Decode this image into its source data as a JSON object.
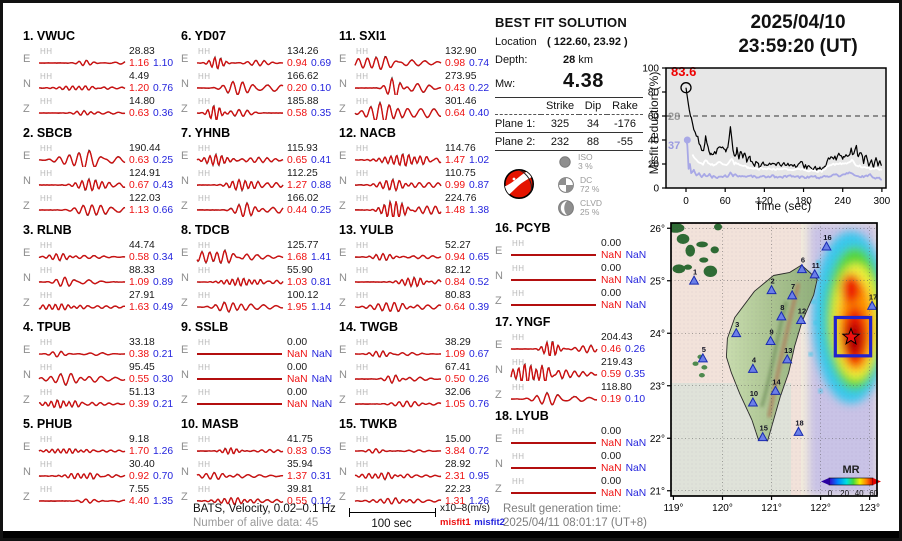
{
  "title": {
    "date": "2025/04/10",
    "time": "23:59:20  (UT)"
  },
  "best_fit": {
    "title": "BEST FIT SOLUTION",
    "location_label": "Location",
    "location_value": "( 122.60,  23.92 )",
    "depth_label": "Depth:",
    "depth_value": "28",
    "depth_unit": "km",
    "mw_label": "Mw:",
    "mw_value": "4.38",
    "table_headers": [
      "",
      "Strike",
      "Dip",
      "Rake"
    ],
    "planes": [
      {
        "label": "Plane 1:",
        "strike": "325",
        "dip": "34",
        "rake": "-176"
      },
      {
        "label": "Plane 2:",
        "strike": "232",
        "dip": "88",
        "rake": "-55"
      }
    ],
    "decomposition": [
      {
        "name": "ISO",
        "pct": "3 %"
      },
      {
        "name": "DC",
        "pct": "72 %"
      },
      {
        "name": "CLVD",
        "pct": "25 %"
      }
    ]
  },
  "stations": [
    {
      "num": "1.",
      "code": "VWUC",
      "traces": [
        {
          "ch": "HH",
          "comp": "E",
          "amp": "28.83",
          "m1": "1.16",
          "m2": "1.10"
        },
        {
          "ch": "HH",
          "comp": "N",
          "amp": "4.49",
          "m1": "1.20",
          "m2": "0.76"
        },
        {
          "ch": "HH",
          "comp": "Z",
          "amp": "14.80",
          "m1": "0.63",
          "m2": "0.36"
        }
      ]
    },
    {
      "num": "2.",
      "code": "SBCB",
      "traces": [
        {
          "ch": "HH",
          "comp": "E",
          "amp": "190.44",
          "m1": "0.63",
          "m2": "0.25"
        },
        {
          "ch": "HH",
          "comp": "N",
          "amp": "124.91",
          "m1": "0.67",
          "m2": "0.43"
        },
        {
          "ch": "HH",
          "comp": "Z",
          "amp": "122.03",
          "m1": "1.13",
          "m2": "0.66"
        }
      ]
    },
    {
      "num": "3.",
      "code": "RLNB",
      "traces": [
        {
          "ch": "HH",
          "comp": "E",
          "amp": "44.74",
          "m1": "0.58",
          "m2": "0.34"
        },
        {
          "ch": "HH",
          "comp": "N",
          "amp": "88.33",
          "m1": "1.09",
          "m2": "0.89"
        },
        {
          "ch": "HH",
          "comp": "Z",
          "amp": "27.91",
          "m1": "1.63",
          "m2": "0.49"
        }
      ]
    },
    {
      "num": "4.",
      "code": "TPUB",
      "traces": [
        {
          "ch": "HH",
          "comp": "E",
          "amp": "33.18",
          "m1": "0.38",
          "m2": "0.21"
        },
        {
          "ch": "HH",
          "comp": "N",
          "amp": "95.45",
          "m1": "0.55",
          "m2": "0.30"
        },
        {
          "ch": "HH",
          "comp": "Z",
          "amp": "51.13",
          "m1": "0.39",
          "m2": "0.21"
        }
      ]
    },
    {
      "num": "5.",
      "code": "PHUB",
      "traces": [
        {
          "ch": "HH",
          "comp": "E",
          "amp": "9.18",
          "m1": "1.70",
          "m2": "1.26"
        },
        {
          "ch": "HH",
          "comp": "N",
          "amp": "30.40",
          "m1": "0.92",
          "m2": "0.70"
        },
        {
          "ch": "HH",
          "comp": "Z",
          "amp": "7.55",
          "m1": "4.40",
          "m2": "1.35"
        }
      ]
    },
    {
      "num": "6.",
      "code": "YD07",
      "traces": [
        {
          "ch": "HH",
          "comp": "E",
          "amp": "134.26",
          "m1": "0.94",
          "m2": "0.69"
        },
        {
          "ch": "HH",
          "comp": "N",
          "amp": "166.62",
          "m1": "0.20",
          "m2": "0.10"
        },
        {
          "ch": "HH",
          "comp": "Z",
          "amp": "185.88",
          "m1": "0.58",
          "m2": "0.35"
        }
      ]
    },
    {
      "num": "7.",
      "code": "YHNB",
      "traces": [
        {
          "ch": "HH",
          "comp": "E",
          "amp": "115.93",
          "m1": "0.65",
          "m2": "0.41"
        },
        {
          "ch": "HH",
          "comp": "N",
          "amp": "112.25",
          "m1": "1.27",
          "m2": "0.88"
        },
        {
          "ch": "HH",
          "comp": "Z",
          "amp": "166.02",
          "m1": "0.44",
          "m2": "0.25"
        }
      ]
    },
    {
      "num": "8.",
      "code": "TDCB",
      "traces": [
        {
          "ch": "HH",
          "comp": "E",
          "amp": "125.77",
          "m1": "1.68",
          "m2": "1.41"
        },
        {
          "ch": "HH",
          "comp": "N",
          "amp": "55.90",
          "m1": "1.03",
          "m2": "0.81"
        },
        {
          "ch": "HH",
          "comp": "Z",
          "amp": "100.12",
          "m1": "1.95",
          "m2": "1.14"
        }
      ]
    },
    {
      "num": "9.",
      "code": "SSLB",
      "traces": [
        {
          "ch": "HH",
          "comp": "E",
          "amp": "0.00",
          "m1": "NaN",
          "m2": "NaN"
        },
        {
          "ch": "HH",
          "comp": "N",
          "amp": "0.00",
          "m1": "NaN",
          "m2": "NaN"
        },
        {
          "ch": "HH",
          "comp": "Z",
          "amp": "0.00",
          "m1": "NaN",
          "m2": "NaN"
        }
      ]
    },
    {
      "num": "10.",
      "code": "MASB",
      "traces": [
        {
          "ch": "HH",
          "comp": "E",
          "amp": "41.75",
          "m1": "0.83",
          "m2": "0.53"
        },
        {
          "ch": "HH",
          "comp": "N",
          "amp": "35.94",
          "m1": "1.37",
          "m2": "0.31"
        },
        {
          "ch": "HH",
          "comp": "Z",
          "amp": "39.81",
          "m1": "0.55",
          "m2": "0.12"
        }
      ]
    },
    {
      "num": "11.",
      "code": "SXI1",
      "traces": [
        {
          "ch": "HH",
          "comp": "E",
          "amp": "132.90",
          "m1": "0.98",
          "m2": "0.74"
        },
        {
          "ch": "HH",
          "comp": "N",
          "amp": "273.95",
          "m1": "0.43",
          "m2": "0.22"
        },
        {
          "ch": "HH",
          "comp": "Z",
          "amp": "301.46",
          "m1": "0.64",
          "m2": "0.40"
        }
      ]
    },
    {
      "num": "12.",
      "code": "NACB",
      "traces": [
        {
          "ch": "HH",
          "comp": "E",
          "amp": "114.76",
          "m1": "1.47",
          "m2": "1.02"
        },
        {
          "ch": "HH",
          "comp": "N",
          "amp": "110.75",
          "m1": "0.99",
          "m2": "0.87"
        },
        {
          "ch": "HH",
          "comp": "Z",
          "amp": "224.76",
          "m1": "1.48",
          "m2": "1.38"
        }
      ]
    },
    {
      "num": "13.",
      "code": "YULB",
      "traces": [
        {
          "ch": "HH",
          "comp": "E",
          "amp": "52.27",
          "m1": "0.94",
          "m2": "0.65"
        },
        {
          "ch": "HH",
          "comp": "N",
          "amp": "82.12",
          "m1": "0.84",
          "m2": "0.52"
        },
        {
          "ch": "HH",
          "comp": "Z",
          "amp": "80.83",
          "m1": "0.64",
          "m2": "0.39"
        }
      ]
    },
    {
      "num": "14.",
      "code": "TWGB",
      "traces": [
        {
          "ch": "HH",
          "comp": "E",
          "amp": "38.29",
          "m1": "1.09",
          "m2": "0.67"
        },
        {
          "ch": "HH",
          "comp": "N",
          "amp": "67.41",
          "m1": "0.50",
          "m2": "0.26"
        },
        {
          "ch": "HH",
          "comp": "Z",
          "amp": "32.06",
          "m1": "1.05",
          "m2": "0.76"
        }
      ]
    },
    {
      "num": "15.",
      "code": "TWKB",
      "traces": [
        {
          "ch": "HH",
          "comp": "E",
          "amp": "15.00",
          "m1": "3.84",
          "m2": "0.72"
        },
        {
          "ch": "HH",
          "comp": "N",
          "amp": "28.92",
          "m1": "2.31",
          "m2": "0.95"
        },
        {
          "ch": "HH",
          "comp": "Z",
          "amp": "22.23",
          "m1": "1.31",
          "m2": "1.26"
        }
      ]
    },
    {
      "num": "16.",
      "code": "PCYB",
      "traces": [
        {
          "ch": "HH",
          "comp": "E",
          "amp": "0.00",
          "m1": "NaN",
          "m2": "NaN"
        },
        {
          "ch": "HH",
          "comp": "N",
          "amp": "0.00",
          "m1": "NaN",
          "m2": "NaN"
        },
        {
          "ch": "HH",
          "comp": "Z",
          "amp": "0.00",
          "m1": "NaN",
          "m2": "NaN"
        }
      ]
    },
    {
      "num": "17.",
      "code": "YNGF",
      "traces": [
        {
          "ch": "HH",
          "comp": "E",
          "amp": "204.43",
          "m1": "0.46",
          "m2": "0.26"
        },
        {
          "ch": "HH",
          "comp": "N",
          "amp": "219.43",
          "m1": "0.59",
          "m2": "0.35"
        },
        {
          "ch": "HH",
          "comp": "Z",
          "amp": "118.80",
          "m1": "0.19",
          "m2": "0.10"
        }
      ]
    },
    {
      "num": "18.",
      "code": "LYUB",
      "traces": [
        {
          "ch": "HH",
          "comp": "E",
          "amp": "0.00",
          "m1": "NaN",
          "m2": "NaN"
        },
        {
          "ch": "HH",
          "comp": "N",
          "amp": "0.00",
          "m1": "NaN",
          "m2": "NaN"
        },
        {
          "ch": "HH",
          "comp": "Z",
          "amp": "0.00",
          "m1": "NaN",
          "m2": "NaN"
        }
      ]
    }
  ],
  "chart_data": {
    "type": "line",
    "title": "2025/04/10 23:59:20 (UT)",
    "xlabel": "Time (sec)",
    "ylabel": "Misfit reduction (%)",
    "xlim": [
      -30,
      305
    ],
    "ylim": [
      0,
      100
    ],
    "xticks": [
      0,
      60,
      120,
      180,
      240,
      300
    ],
    "yticks": [
      0,
      20,
      40,
      60,
      80,
      100
    ],
    "dashed_line_y": 60,
    "annotations": [
      {
        "text": "83.6",
        "color": "#ee0000",
        "x": 0,
        "y": 83.6,
        "marker": "open-circle"
      },
      {
        "text": "28",
        "color": "#9a9a9a",
        "x": 0,
        "y": 60,
        "marker": "none"
      },
      {
        "text": "37",
        "color": "#9a9ae0",
        "x": 0,
        "y": 40,
        "marker": "filled-circle"
      }
    ],
    "series": [
      {
        "name": "best-solution-misfit",
        "color": "#000000",
        "width": 1.2,
        "x": [
          0,
          2,
          5,
          8,
          12,
          16,
          20,
          24,
          27,
          30,
          32,
          35,
          38,
          42,
          46,
          50,
          54,
          58,
          61,
          64,
          68,
          70,
          72,
          75,
          78,
          81,
          84,
          87,
          90,
          93,
          96,
          99,
          103,
          107,
          112,
          118,
          124,
          130,
          138,
          146,
          154,
          162,
          170,
          178,
          181,
          186,
          192,
          198,
          205,
          212,
          218,
          224,
          230,
          236,
          241,
          245,
          249,
          253,
          257,
          261,
          264,
          268,
          272,
          276,
          280,
          284,
          287,
          291,
          294,
          297,
          300
        ],
        "y": [
          83.6,
          76,
          65,
          58,
          50,
          44,
          38,
          33,
          30,
          44,
          36,
          31,
          29,
          28,
          30,
          32,
          35,
          32,
          29,
          33,
          52,
          40,
          30,
          26,
          32,
          25,
          30,
          24,
          29,
          21,
          27,
          24,
          19,
          21,
          19,
          20,
          19,
          20,
          19,
          20,
          19,
          20,
          19,
          22,
          18,
          17,
          17,
          16,
          16,
          17,
          24,
          26,
          25,
          28,
          25,
          29,
          26,
          32,
          27,
          34,
          26,
          29,
          22,
          27,
          20,
          24,
          18,
          27,
          17,
          22,
          19
        ]
      },
      {
        "name": "secondary-misfit",
        "color": "#ffffff",
        "width": 1.8,
        "x": [
          10,
          14,
          18,
          22,
          26,
          30,
          34,
          38,
          42,
          46,
          50,
          54,
          58,
          62,
          66,
          70,
          74,
          78,
          82,
          86,
          90,
          95,
          100,
          106,
          112,
          120,
          128,
          136,
          144,
          152,
          160,
          168,
          176,
          184,
          192,
          200,
          208,
          216,
          224,
          232,
          240,
          248,
          254,
          260,
          268,
          276,
          284,
          292,
          300
        ],
        "y": [
          28,
          24,
          22,
          21,
          20,
          23,
          21,
          20,
          19,
          20,
          21,
          21,
          20,
          19,
          21,
          25,
          20,
          21,
          19,
          19,
          18,
          17,
          17,
          16,
          16,
          16,
          16,
          16,
          15,
          16,
          15,
          15,
          16,
          14,
          15,
          14,
          14,
          18,
          20,
          20,
          20,
          21,
          23,
          19,
          18,
          17,
          16,
          16,
          15
        ]
      },
      {
        "name": "reference-misfit",
        "color": "#a8a8e6",
        "width": 1.8,
        "x": [
          0,
          2,
          4,
          6,
          8,
          12,
          16,
          20,
          24,
          28,
          32,
          36,
          40,
          44,
          48,
          52,
          56,
          60,
          64,
          68,
          72,
          76,
          80,
          84,
          88,
          92,
          96,
          100,
          108,
          116,
          124,
          132,
          140,
          148,
          156,
          164,
          172,
          180,
          188,
          196,
          204,
          212,
          220,
          228,
          236,
          244,
          252,
          258,
          266,
          274,
          282,
          288,
          294,
          300
        ],
        "y": [
          40,
          36,
          16,
          20,
          12,
          15,
          10,
          12,
          9,
          11,
          9,
          11,
          9,
          10,
          8,
          10,
          9,
          10,
          10,
          13,
          10,
          12,
          10,
          9,
          10,
          9,
          10,
          10,
          9,
          10,
          9,
          10,
          9,
          9,
          10,
          10,
          9,
          9,
          9,
          10,
          8,
          10,
          10,
          11,
          10,
          12,
          13,
          10,
          9,
          10,
          11,
          8,
          9,
          7
        ]
      }
    ]
  },
  "map": {
    "lon_ticks": [
      "119°",
      "120°",
      "121°",
      "122°",
      "123°"
    ],
    "lat_ticks": [
      "26°",
      "25°",
      "24°",
      "23°",
      "22°",
      "21°"
    ],
    "colorbar": {
      "label": "MR",
      "ticks": [
        "0",
        "20",
        "40",
        "60"
      ]
    },
    "epicenter": {
      "lon": 122.62,
      "lat": 23.93
    },
    "stations": [
      {
        "n": "1",
        "lon": 119.42,
        "lat": 25.0
      },
      {
        "n": "2",
        "lon": 121.0,
        "lat": 24.82
      },
      {
        "n": "3",
        "lon": 120.28,
        "lat": 24.0
      },
      {
        "n": "4",
        "lon": 120.62,
        "lat": 23.32
      },
      {
        "n": "5",
        "lon": 119.6,
        "lat": 23.52
      },
      {
        "n": "6",
        "lon": 121.62,
        "lat": 25.22
      },
      {
        "n": "7",
        "lon": 121.42,
        "lat": 24.72
      },
      {
        "n": "8",
        "lon": 121.2,
        "lat": 24.32
      },
      {
        "n": "9",
        "lon": 120.98,
        "lat": 23.85
      },
      {
        "n": "10",
        "lon": 120.62,
        "lat": 22.68
      },
      {
        "n": "11",
        "lon": 121.88,
        "lat": 25.12
      },
      {
        "n": "12",
        "lon": 121.6,
        "lat": 24.25
      },
      {
        "n": "13",
        "lon": 121.32,
        "lat": 23.5
      },
      {
        "n": "14",
        "lon": 121.08,
        "lat": 22.9
      },
      {
        "n": "15",
        "lon": 120.82,
        "lat": 22.02
      },
      {
        "n": "16",
        "lon": 122.12,
        "lat": 25.65
      },
      {
        "n": "17",
        "lon": 123.05,
        "lat": 24.52
      },
      {
        "n": "18",
        "lon": 121.55,
        "lat": 22.12
      }
    ]
  },
  "footer": {
    "line1": "BATS, Velocity, 0.02–0.1 Hz",
    "line2": "Number of alive data: 45",
    "scale_label": "100 sec",
    "units": "x10–8(m/s)",
    "misfit1": "misfit1",
    "misfit2": "misfit2",
    "gen_label": "Result generation time:",
    "gen_value": "2025/04/11 08:01:17 (UT+8)"
  },
  "colors": {
    "observed": "#111111",
    "synthetic": "#cc1111",
    "misfit1": "#ee1111",
    "misfit2": "#2323dd"
  }
}
